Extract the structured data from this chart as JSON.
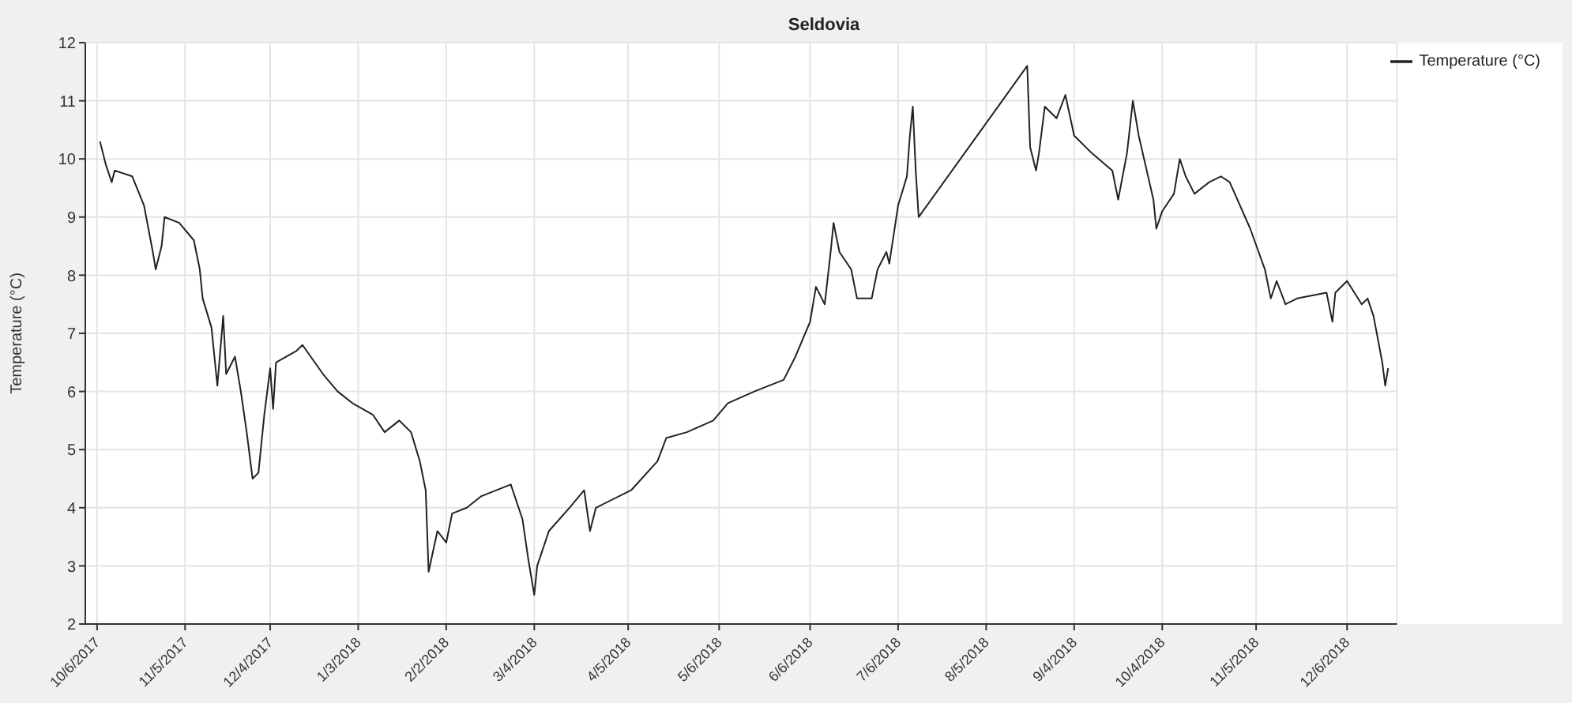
{
  "chart_data": {
    "type": "line",
    "title": "Seldovia",
    "ylabel": "Temperature (°C)",
    "x": [
      "2017-10-07",
      "2017-10-09",
      "2017-10-11",
      "2017-10-12",
      "2017-10-18",
      "2017-10-22",
      "2017-10-25",
      "2017-10-26",
      "2017-10-28",
      "2017-10-29",
      "2017-11-03",
      "2017-11-08",
      "2017-11-10",
      "2017-11-11",
      "2017-11-14",
      "2017-11-16",
      "2017-11-18",
      "2017-11-19",
      "2017-11-22",
      "2017-11-24",
      "2017-11-26",
      "2017-11-28",
      "2017-11-30",
      "2017-12-02",
      "2017-12-04",
      "2017-12-05",
      "2017-12-06",
      "2017-12-13",
      "2017-12-15",
      "2017-12-22",
      "2017-12-27",
      "2018-01-01",
      "2018-01-08",
      "2018-01-12",
      "2018-01-17",
      "2018-01-21",
      "2018-01-24",
      "2018-01-26",
      "2018-01-27",
      "2018-01-30",
      "2018-02-02",
      "2018-02-04",
      "2018-02-09",
      "2018-02-14",
      "2018-02-24",
      "2018-02-28",
      "2018-03-02",
      "2018-03-04",
      "2018-03-05",
      "2018-03-09",
      "2018-03-16",
      "2018-03-21",
      "2018-03-23",
      "2018-03-25",
      "2018-04-06",
      "2018-04-15",
      "2018-04-18",
      "2018-04-25",
      "2018-05-04",
      "2018-05-09",
      "2018-05-18",
      "2018-05-28",
      "2018-06-01",
      "2018-06-06",
      "2018-06-08",
      "2018-06-11",
      "2018-06-13",
      "2018-06-14",
      "2018-06-16",
      "2018-06-20",
      "2018-06-22",
      "2018-06-27",
      "2018-06-29",
      "2018-07-02",
      "2018-07-03",
      "2018-07-06",
      "2018-07-09",
      "2018-07-10",
      "2018-07-11",
      "2018-07-12",
      "2018-07-13",
      "2018-08-19",
      "2018-08-20",
      "2018-08-22",
      "2018-08-23",
      "2018-08-25",
      "2018-08-29",
      "2018-09-01",
      "2018-09-04",
      "2018-09-10",
      "2018-09-17",
      "2018-09-19",
      "2018-09-22",
      "2018-09-24",
      "2018-09-26",
      "2018-10-01",
      "2018-10-02",
      "2018-10-04",
      "2018-10-08",
      "2018-10-10",
      "2018-10-12",
      "2018-10-15",
      "2018-10-20",
      "2018-10-24",
      "2018-10-27",
      "2018-11-03",
      "2018-11-08",
      "2018-11-10",
      "2018-11-12",
      "2018-11-15",
      "2018-11-19",
      "2018-11-29",
      "2018-12-01",
      "2018-12-02",
      "2018-12-06",
      "2018-12-11",
      "2018-12-13",
      "2018-12-15",
      "2018-12-18",
      "2018-12-19",
      "2018-12-20"
    ],
    "series": [
      {
        "name": "Temperature (°C)",
        "color": "#222222",
        "values": [
          10.3,
          9.9,
          9.6,
          9.8,
          9.7,
          9.2,
          8.4,
          8.1,
          8.5,
          9.0,
          8.9,
          8.6,
          8.1,
          7.6,
          7.1,
          6.1,
          7.3,
          6.3,
          6.6,
          6.0,
          5.3,
          4.5,
          4.6,
          5.6,
          6.4,
          5.7,
          6.5,
          6.7,
          6.8,
          6.3,
          6.0,
          5.8,
          5.6,
          5.3,
          5.5,
          5.3,
          4.8,
          4.3,
          2.9,
          3.6,
          3.4,
          3.9,
          4.0,
          4.2,
          4.4,
          3.8,
          3.1,
          2.5,
          3.0,
          3.6,
          4.0,
          4.3,
          3.6,
          4.0,
          4.3,
          4.8,
          5.2,
          5.3,
          5.5,
          5.8,
          6.0,
          6.2,
          6.6,
          7.2,
          7.8,
          7.5,
          8.4,
          8.9,
          8.4,
          8.1,
          7.6,
          7.6,
          8.1,
          8.4,
          8.2,
          9.2,
          9.7,
          10.4,
          10.9,
          9.8,
          9.0,
          11.6,
          10.2,
          9.8,
          10.1,
          10.9,
          10.7,
          11.1,
          10.4,
          10.1,
          9.8,
          9.3,
          10.1,
          11.0,
          10.4,
          9.3,
          8.8,
          9.1,
          9.4,
          10.0,
          9.7,
          9.4,
          9.6,
          9.7,
          9.6,
          8.8,
          8.1,
          7.6,
          7.9,
          7.5,
          7.6,
          7.7,
          7.2,
          7.7,
          7.9,
          7.5,
          7.6,
          7.3,
          6.5,
          6.1,
          6.4
        ]
      }
    ],
    "xlim": [
      "2017-10-02",
      "2018-12-23"
    ],
    "xticks": [
      {
        "value": "2017-10-06",
        "label": "10/6/2017"
      },
      {
        "value": "2017-11-05",
        "label": "11/5/2017"
      },
      {
        "value": "2017-12-04",
        "label": "12/4/2017"
      },
      {
        "value": "2018-01-03",
        "label": "1/3/2018"
      },
      {
        "value": "2018-02-02",
        "label": "2/2/2018"
      },
      {
        "value": "2018-03-04",
        "label": "3/4/2018"
      },
      {
        "value": "2018-04-05",
        "label": "4/5/2018"
      },
      {
        "value": "2018-05-06",
        "label": "5/6/2018"
      },
      {
        "value": "2018-06-06",
        "label": "6/6/2018"
      },
      {
        "value": "2018-07-06",
        "label": "7/6/2018"
      },
      {
        "value": "2018-08-05",
        "label": "8/5/2018"
      },
      {
        "value": "2018-09-04",
        "label": "9/4/2018"
      },
      {
        "value": "2018-10-04",
        "label": "10/4/2018"
      },
      {
        "value": "2018-11-05",
        "label": "11/5/2018"
      },
      {
        "value": "2018-12-06",
        "label": "12/6/2018"
      }
    ],
    "ylim": [
      2,
      12
    ],
    "yticks": [
      2,
      3,
      4,
      5,
      6,
      7,
      8,
      9,
      10,
      11,
      12
    ],
    "grid": true,
    "legend": "top right",
    "marker": "none",
    "line_style": "solid"
  }
}
